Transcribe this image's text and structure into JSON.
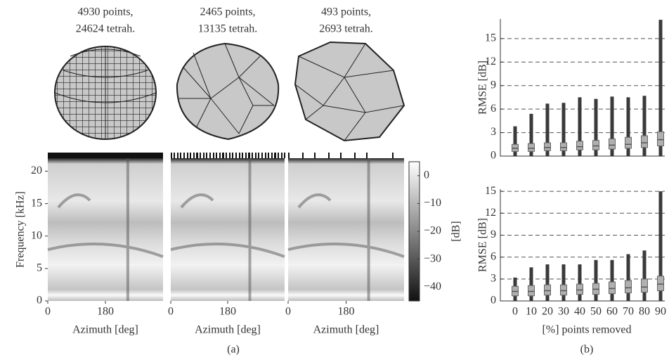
{
  "chart_data": [
    {
      "type": "heatmap",
      "title": [
        "4930 points,",
        "24624 tetrah."
      ],
      "xlabel": "Azimuth [deg]",
      "xlim": [
        0,
        360
      ],
      "xticks": [
        0,
        180
      ],
      "ylim": [
        0,
        22
      ],
      "yticks": [
        0,
        5,
        10,
        15,
        20
      ],
      "ylabel": "Frequency [kHz]"
    },
    {
      "type": "heatmap",
      "title": [
        "2465 points,",
        "13135 tetrah."
      ],
      "xlabel": "Azimuth [deg]",
      "xlim": [
        0,
        360
      ],
      "xticks": [
        0,
        180
      ],
      "ylim": [
        0,
        22
      ]
    },
    {
      "type": "heatmap",
      "title": [
        "493 points,",
        "2693 tetrah."
      ],
      "xlabel": "Azimuth [deg]",
      "xlim": [
        0,
        360
      ],
      "xticks": [
        0,
        180
      ],
      "ylim": [
        0,
        22
      ]
    },
    {
      "type": "colorbar",
      "label": "[dB]",
      "ylim": [
        -45,
        5
      ],
      "yticks": [
        0,
        {
          "value": -10,
          "label": "−10"
        },
        {
          "value": -20,
          "label": "−20"
        },
        {
          "value": -30,
          "label": "−30"
        },
        {
          "value": -40,
          "label": "−40"
        }
      ]
    },
    {
      "type": "box",
      "ylabel": "RMSE [dB]",
      "ylim": [
        0,
        17.5
      ],
      "yticks": [
        0,
        3,
        6,
        9,
        12,
        15
      ],
      "grid": true,
      "color": "#3a3a3a",
      "box_color": "#b0b0b0",
      "series": {
        "min": [
          0,
          0,
          0,
          0,
          0,
          0,
          0,
          0,
          0,
          0
        ],
        "q1": [
          0.6,
          0.6,
          0.7,
          0.7,
          0.8,
          0.8,
          0.9,
          1.0,
          1.1,
          1.3
        ],
        "median": [
          1.0,
          1.0,
          1.1,
          1.1,
          1.2,
          1.3,
          1.4,
          1.5,
          1.7,
          2.1
        ],
        "q3": [
          1.5,
          1.6,
          1.7,
          1.7,
          1.9,
          2.0,
          2.2,
          2.4,
          2.6,
          3.1
        ],
        "max": [
          3.8,
          5.4,
          6.7,
          6.8,
          7.5,
          7.3,
          7.6,
          7.5,
          7.7,
          17.4
        ]
      }
    },
    {
      "type": "box",
      "ylabel": "RMSE [dB]",
      "xlabel": "[%] points removed",
      "categories": [
        "0",
        "10",
        "20",
        "30",
        "40",
        "50",
        "60",
        "70",
        "80",
        "90"
      ],
      "ylim": [
        0,
        15.3
      ],
      "yticks": [
        0,
        3,
        6,
        9,
        12,
        15
      ],
      "grid": true,
      "color": "#3a3a3a",
      "box_color": "#b0b0b0",
      "series": {
        "min": [
          0,
          0,
          0,
          0,
          0,
          0,
          0,
          0,
          0,
          0
        ],
        "q1": [
          0.7,
          0.7,
          0.8,
          0.8,
          0.9,
          0.9,
          1.0,
          1.1,
          1.2,
          1.4
        ],
        "median": [
          1.3,
          1.3,
          1.4,
          1.4,
          1.5,
          1.6,
          1.7,
          1.8,
          1.9,
          2.3
        ],
        "q3": [
          2.0,
          2.1,
          2.2,
          2.2,
          2.3,
          2.4,
          2.6,
          2.8,
          3.0,
          3.4
        ],
        "max": [
          3.2,
          4.6,
          5.0,
          5.0,
          5.0,
          5.6,
          5.6,
          6.4,
          6.9,
          15.0
        ]
      }
    }
  ],
  "labels": {
    "a": "(a)",
    "b": "(b)"
  }
}
